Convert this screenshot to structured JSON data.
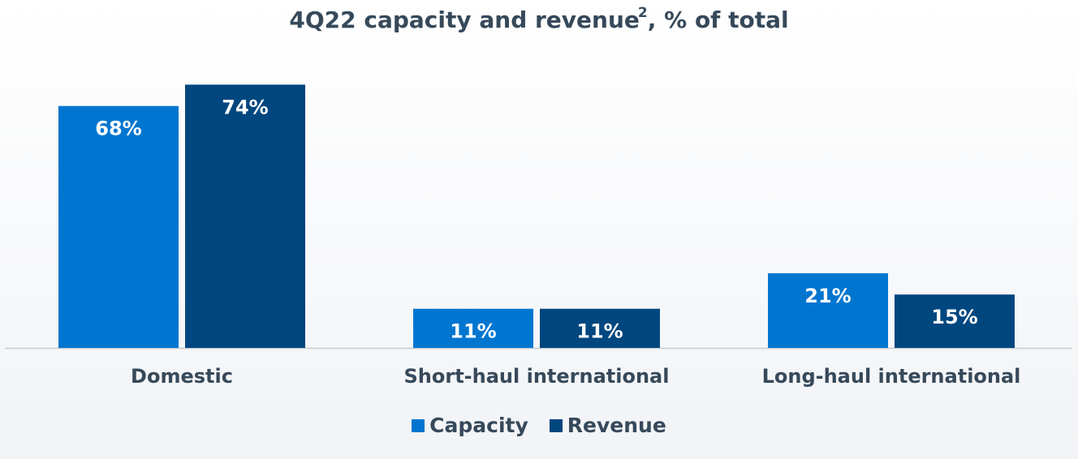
{
  "chart_data": {
    "type": "bar",
    "title": "4Q22 capacity and revenue",
    "title_footnote": "2",
    "title_suffix": ", % of total",
    "categories": [
      "Domestic",
      "Short-haul international",
      "Long-haul international"
    ],
    "series": [
      {
        "name": "Capacity",
        "values": [
          68,
          11,
          21
        ],
        "labels": [
          "68%",
          "11%",
          "21%"
        ],
        "color": "#0076d0"
      },
      {
        "name": "Revenue",
        "values": [
          74,
          11,
          15
        ],
        "labels": [
          "74%",
          "11%",
          "15%"
        ],
        "color": "#00467f"
      }
    ],
    "ylim": [
      0,
      75
    ],
    "grid": false,
    "legend_position": "bottom"
  }
}
